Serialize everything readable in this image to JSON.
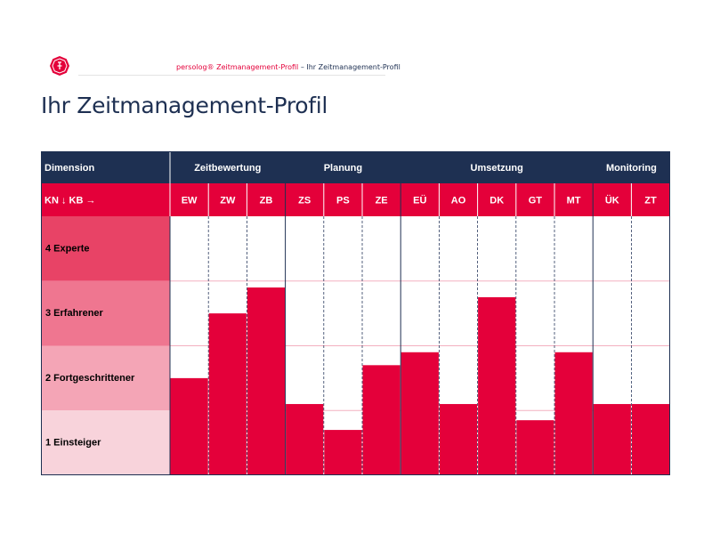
{
  "header": {
    "brand": "persolog® Zeitmanagement-Profil",
    "separator": " – ",
    "subtitle": "Ihr Zeitmanagement-Profil",
    "logo_icon": "persolog-logo-icon"
  },
  "page_title": "Ihr Zeitmanagement-Profil",
  "colors": {
    "navy": "#1e3052",
    "accent": "#e4003a",
    "level4": "#e84366",
    "level3": "#ef7690",
    "level2": "#f4a5b6",
    "level1": "#f8d3db"
  },
  "chart_data": {
    "type": "bar",
    "title": "Ihr Zeitmanagement-Profil",
    "corner_header": "Dimension",
    "axis_header": "KN ↓ KB →",
    "groups": [
      {
        "name": "Zeitbewertung",
        "categories": [
          "EW",
          "ZW",
          "ZB"
        ]
      },
      {
        "name": "Planung",
        "categories": [
          "ZS",
          "PS",
          "ZE"
        ]
      },
      {
        "name": "Umsetzung",
        "categories": [
          "EÜ",
          "AO",
          "DK",
          "GT",
          "MT"
        ]
      },
      {
        "name": "Monitoring",
        "categories": [
          "ÜK",
          "ZT"
        ]
      }
    ],
    "categories": [
      "EW",
      "ZW",
      "ZB",
      "ZS",
      "PS",
      "ZE",
      "EÜ",
      "AO",
      "DK",
      "GT",
      "MT",
      "ÜK",
      "ZT"
    ],
    "values": [
      1.5,
      2.5,
      2.9,
      1.1,
      0.7,
      1.7,
      1.9,
      1.1,
      2.75,
      0.85,
      1.9,
      1.1,
      1.1
    ],
    "levels": [
      "1 Einsteiger",
      "2 Fortgeschrittener",
      "3 Erfahrener",
      "4 Experte"
    ],
    "ylim": [
      0,
      4
    ],
    "xlabel": "",
    "ylabel": ""
  }
}
